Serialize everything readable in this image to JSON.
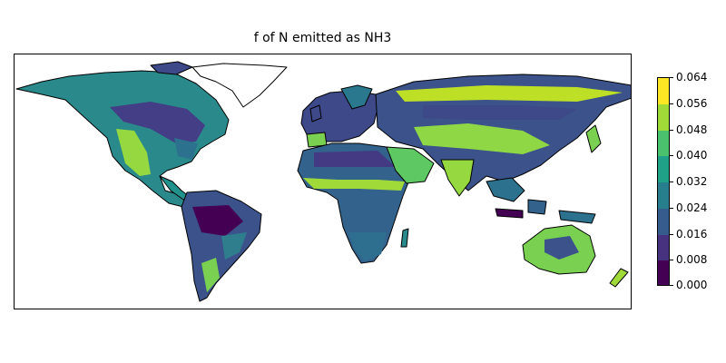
{
  "title": "f of N emitted as NH3",
  "colorbar": {
    "ticks": [
      "0.000",
      "0.008",
      "0.016",
      "0.024",
      "0.032",
      "0.040",
      "0.048",
      "0.056",
      "0.064"
    ],
    "colors": [
      "#440154",
      "#46327e",
      "#365c8d",
      "#277f8e",
      "#1fa187",
      "#4ac16d",
      "#a0da39",
      "#fde725"
    ]
  },
  "map": {
    "ocean_color": "#ffffff",
    "coastline_color": "#000000",
    "colormap": "viridis"
  }
}
